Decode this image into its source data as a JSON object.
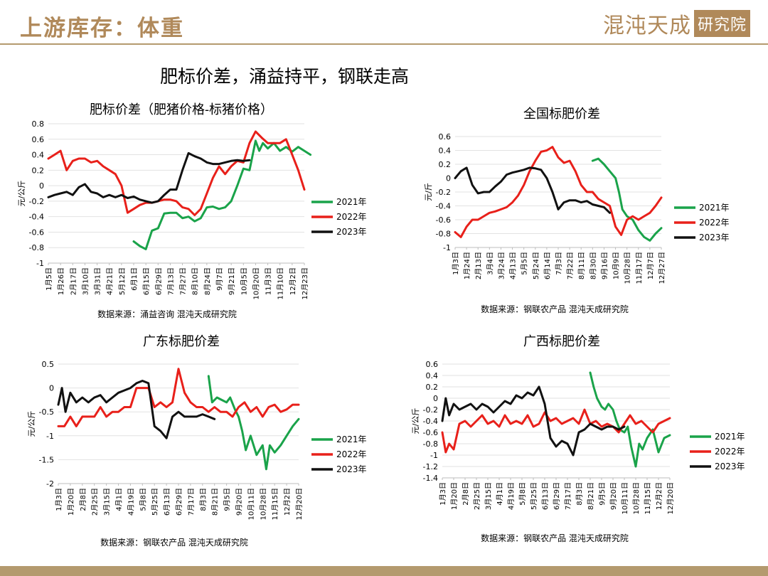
{
  "header": {
    "title": "上游库存：体重",
    "logo_text": "混沌天成",
    "logo_box": "研究院"
  },
  "subtitle": "肥标价差，涌益持平，钢联走高",
  "colors": {
    "y2021": "#1aa34a",
    "y2022": "#e8201a",
    "y2023": "#111111",
    "accent": "#b0895a"
  },
  "chart_data": [
    {
      "type": "line",
      "title": "肥标价差（肥猪价格-标猪价格）",
      "ylabel": "元/公斤",
      "source": "数据来源：涌益咨询 混沌天成研究院",
      "ylim": [
        -1,
        0.8
      ],
      "yticks": [
        -1,
        -0.8,
        -0.6,
        -0.4,
        -0.2,
        0,
        0.2,
        0.4,
        0.6,
        0.8
      ],
      "xticks": [
        "1月5日",
        "1月26日",
        "2月17日",
        "3月10日",
        "3月31日",
        "4月21日",
        "5月12日",
        "6月1日",
        "6月15日",
        "6月29日",
        "7月13日",
        "7月27日",
        "8月10日",
        "8月24日",
        "9月7日",
        "9月21日",
        "10月5日",
        "10月20日",
        "11月3日",
        "11月10日",
        "12月2日",
        "12月23日"
      ],
      "series": [
        {
          "name": "2021年",
          "x": [
            7,
            7.5,
            8,
            8.5,
            9,
            9.5,
            10,
            10.5,
            11,
            11.5,
            12,
            12.5,
            13,
            13.5,
            14,
            14.5,
            15,
            15.5,
            16,
            16.5,
            17,
            17.3,
            17.6,
            18,
            18.5,
            19,
            19.5,
            20,
            20.5,
            21,
            21.5
          ],
          "values": [
            -0.72,
            -0.78,
            -0.82,
            -0.58,
            -0.55,
            -0.36,
            -0.35,
            -0.35,
            -0.42,
            -0.4,
            -0.46,
            -0.42,
            -0.28,
            -0.27,
            -0.3,
            -0.28,
            -0.2,
            0.0,
            0.22,
            0.2,
            0.58,
            0.45,
            0.55,
            0.48,
            0.55,
            0.45,
            0.5,
            0.44,
            0.5,
            0.45,
            0.4
          ]
        },
        {
          "name": "2022年",
          "x": [
            0,
            0.5,
            1,
            1.5,
            2,
            2.5,
            3,
            3.5,
            4,
            4.5,
            5,
            5.5,
            6,
            6.5,
            7,
            7.5,
            8,
            8.5,
            9,
            9.5,
            10,
            10.5,
            11,
            11.5,
            12,
            12.5,
            13,
            13.5,
            14,
            14.5,
            15,
            15.5,
            16,
            16.5,
            17,
            17.5,
            18,
            18.5,
            19,
            19.5,
            20,
            20.5,
            21
          ],
          "values": [
            0.35,
            0.4,
            0.45,
            0.2,
            0.32,
            0.35,
            0.35,
            0.3,
            0.32,
            0.25,
            0.2,
            0.15,
            0.0,
            -0.35,
            -0.3,
            -0.25,
            -0.22,
            -0.22,
            -0.2,
            -0.18,
            -0.18,
            -0.2,
            -0.28,
            -0.3,
            -0.38,
            -0.3,
            -0.1,
            0.1,
            0.25,
            0.15,
            0.25,
            0.32,
            0.3,
            0.55,
            0.7,
            0.62,
            0.55,
            0.55,
            0.55,
            0.6,
            0.4,
            0.2,
            -0.05
          ]
        },
        {
          "name": "2023年",
          "x": [
            0,
            0.5,
            1,
            1.5,
            2,
            2.5,
            3,
            3.5,
            4,
            4.5,
            5,
            5.5,
            6,
            6.5,
            7,
            7.5,
            8,
            8.5,
            9,
            9.5,
            10,
            10.5,
            11,
            11.5,
            12,
            12.5,
            13,
            13.5,
            14,
            14.5,
            15,
            15.5,
            16,
            16.5
          ],
          "values": [
            -0.15,
            -0.12,
            -0.1,
            -0.08,
            -0.12,
            -0.02,
            0.02,
            -0.08,
            -0.1,
            -0.15,
            -0.12,
            -0.15,
            -0.12,
            -0.16,
            -0.14,
            -0.18,
            -0.2,
            -0.22,
            -0.2,
            -0.12,
            -0.05,
            -0.05,
            0.2,
            0.42,
            0.38,
            0.35,
            0.3,
            0.28,
            0.28,
            0.3,
            0.32,
            0.33,
            0.32,
            0.33
          ]
        }
      ]
    },
    {
      "type": "line",
      "title": "全国标肥价差",
      "ylabel": "元/斤",
      "source": "数据来源：钢联农产品 混沌天成研究院",
      "ylim": [
        -1,
        0.6
      ],
      "yticks": [
        -1,
        -0.8,
        -0.6,
        -0.4,
        -0.2,
        0,
        0.2,
        0.4,
        0.6
      ],
      "xticks": [
        "1月3日",
        "1月24日",
        "2月13日",
        "3月4日",
        "3月24日",
        "4月13日",
        "5月5日",
        "5月24日",
        "6月14日",
        "7月3日",
        "7月22日",
        "8月11日",
        "8月30日",
        "9月16日",
        "10月9日",
        "10月28日",
        "11月17日",
        "12月7日",
        "12月27日"
      ],
      "series": [
        {
          "name": "2021年",
          "x": [
            12,
            12.5,
            13,
            13.5,
            14,
            14.3,
            14.6,
            15,
            15.5,
            16,
            16.5,
            17,
            17.5,
            18
          ],
          "values": [
            0.25,
            0.28,
            0.2,
            0.1,
            0.0,
            -0.2,
            -0.45,
            -0.55,
            -0.6,
            -0.75,
            -0.85,
            -0.9,
            -0.8,
            -0.72
          ]
        },
        {
          "name": "2022年",
          "x": [
            0,
            0.5,
            1,
            1.5,
            2,
            2.5,
            3,
            3.5,
            4,
            4.5,
            5,
            5.5,
            6,
            6.5,
            7,
            7.5,
            8,
            8.5,
            9,
            9.5,
            10,
            10.5,
            11,
            11.5,
            12,
            12.5,
            13,
            13.5,
            14,
            14.5,
            15,
            15.5,
            16,
            16.5,
            17,
            17.5,
            18
          ],
          "values": [
            -0.78,
            -0.85,
            -0.7,
            -0.6,
            -0.6,
            -0.55,
            -0.5,
            -0.48,
            -0.45,
            -0.42,
            -0.35,
            -0.25,
            -0.1,
            0.1,
            0.25,
            0.38,
            0.4,
            0.45,
            0.3,
            0.22,
            0.25,
            0.1,
            -0.1,
            -0.2,
            -0.2,
            -0.3,
            -0.35,
            -0.4,
            -0.7,
            -0.82,
            -0.6,
            -0.55,
            -0.6,
            -0.55,
            -0.5,
            -0.4,
            -0.28
          ]
        },
        {
          "name": "2023年",
          "x": [
            0,
            0.5,
            1,
            1.5,
            2,
            2.5,
            3,
            3.5,
            4,
            4.5,
            5,
            5.5,
            6,
            6.5,
            7,
            7.5,
            8,
            8.5,
            9,
            9.5,
            10,
            10.5,
            11,
            11.5,
            12,
            12.5,
            13,
            13.5
          ],
          "values": [
            0.0,
            0.1,
            0.15,
            -0.1,
            -0.22,
            -0.2,
            -0.2,
            -0.12,
            -0.05,
            0.05,
            0.08,
            0.1,
            0.12,
            0.15,
            0.14,
            0.12,
            0.0,
            -0.2,
            -0.45,
            -0.35,
            -0.32,
            -0.32,
            -0.35,
            -0.33,
            -0.38,
            -0.4,
            -0.42,
            -0.5
          ]
        }
      ]
    },
    {
      "type": "line",
      "title": "广东标肥价差",
      "ylabel": "元/公斤",
      "source": "数据来源：钢联农产品 混沌天成研究院",
      "ylim": [
        -2,
        0.5
      ],
      "yticks": [
        -2,
        -1.5,
        -1,
        -0.5,
        0,
        0.5
      ],
      "xticks": [
        "1月3日",
        "1月20日",
        "2月8日",
        "2月25日",
        "3月15日",
        "4月1日",
        "4月19日",
        "5月8日",
        "5月25日",
        "6月13日",
        "6月29日",
        "7月17日",
        "8月3日",
        "8月21日",
        "9月5日",
        "9月20日",
        "10月11日",
        "10月28日",
        "11月15日",
        "12月2日",
        "12月20日"
      ],
      "series": [
        {
          "name": "2021年",
          "x": [
            12.5,
            12.8,
            13.2,
            13.6,
            14,
            14.3,
            14.7,
            15,
            15.3,
            15.6,
            16,
            16.5,
            17,
            17.3,
            17.6,
            18,
            18.5,
            19,
            19.5,
            20
          ],
          "values": [
            0.25,
            -0.3,
            -0.2,
            -0.25,
            -0.3,
            -0.2,
            -0.45,
            -0.6,
            -0.9,
            -1.3,
            -1.0,
            -1.4,
            -1.2,
            -1.7,
            -1.2,
            -1.35,
            -1.2,
            -1.0,
            -0.8,
            -0.65
          ]
        },
        {
          "name": "2022年",
          "x": [
            0,
            0.5,
            1,
            1.5,
            2,
            2.5,
            3,
            3.5,
            4,
            4.5,
            5,
            5.5,
            6,
            6.5,
            7,
            7.5,
            8,
            8.5,
            9,
            9.5,
            10,
            10.5,
            11,
            11.5,
            12,
            12.5,
            13,
            13.5,
            14,
            14.5,
            15,
            15.5,
            16,
            16.5,
            17,
            17.5,
            18,
            18.5,
            19,
            19.5,
            20
          ],
          "values": [
            -0.8,
            -0.8,
            -0.6,
            -0.8,
            -0.6,
            -0.6,
            -0.6,
            -0.4,
            -0.6,
            -0.5,
            -0.5,
            -0.4,
            -0.4,
            0.0,
            0.0,
            0.0,
            -0.4,
            -0.3,
            -0.4,
            -0.3,
            0.4,
            -0.1,
            -0.3,
            -0.4,
            -0.4,
            -0.5,
            -0.4,
            -0.5,
            -0.5,
            -0.6,
            -0.4,
            -0.3,
            -0.5,
            -0.4,
            -0.6,
            -0.4,
            -0.35,
            -0.5,
            -0.45,
            -0.35,
            -0.35
          ]
        },
        {
          "name": "2023年",
          "x": [
            0,
            0.3,
            0.6,
            1,
            1.5,
            2,
            2.5,
            3,
            3.5,
            4,
            4.5,
            5,
            5.5,
            6,
            6.5,
            7,
            7.5,
            8,
            8.5,
            9,
            9.5,
            10,
            10.5,
            11,
            11.5,
            12,
            12.5,
            13
          ],
          "values": [
            -0.35,
            0.0,
            -0.5,
            -0.1,
            -0.3,
            -0.2,
            -0.3,
            -0.2,
            -0.15,
            -0.3,
            -0.2,
            -0.1,
            -0.05,
            0.0,
            0.1,
            0.15,
            0.1,
            -0.8,
            -0.9,
            -1.05,
            -0.6,
            -0.5,
            -0.6,
            -0.6,
            -0.6,
            -0.55,
            -0.6,
            -0.65
          ]
        }
      ]
    },
    {
      "type": "line",
      "title": "广西标肥价差",
      "ylabel": "元/公斤",
      "source": "数据来源：钢联农产品 混沌天成研究院",
      "ylim": [
        -1.4,
        0.6
      ],
      "yticks": [
        -1.4,
        -1.2,
        -1,
        -0.8,
        -0.6,
        -0.4,
        -0.2,
        0,
        0.2,
        0.4,
        0.6
      ],
      "xticks": [
        "1月3日",
        "1月20日",
        "2月8日",
        "2月25日",
        "3月15日",
        "4月1日",
        "4月19日",
        "5月8日",
        "5月25日",
        "6月13日",
        "6月29日",
        "7月17日",
        "8月3日",
        "8月21日",
        "9月5日",
        "9月20日",
        "10月11日",
        "10月28日",
        "11月15日",
        "12月2日",
        "12月20日"
      ],
      "series": [
        {
          "name": "2021年",
          "x": [
            13,
            13.3,
            13.6,
            14,
            14.3,
            14.6,
            15,
            15.3,
            15.6,
            16,
            16.3,
            16.6,
            17,
            17.3,
            17.6,
            18,
            18.5,
            19,
            19.5,
            20
          ],
          "values": [
            0.45,
            0.2,
            0.0,
            -0.15,
            -0.2,
            -0.1,
            -0.2,
            -0.4,
            -0.55,
            -0.6,
            -0.5,
            -0.85,
            -1.2,
            -0.8,
            -0.9,
            -0.7,
            -0.55,
            -0.95,
            -0.7,
            -0.65
          ]
        },
        {
          "name": "2022年",
          "x": [
            0,
            0.3,
            0.6,
            1,
            1.5,
            2,
            2.5,
            3,
            3.5,
            4,
            4.5,
            5,
            5.5,
            6,
            6.5,
            7,
            7.5,
            8,
            8.5,
            9,
            9.5,
            10,
            10.5,
            11,
            11.5,
            12,
            12.5,
            13,
            13.5,
            14,
            14.5,
            15,
            15.5,
            16,
            16.5,
            17,
            17.5,
            18,
            18.5,
            19,
            19.5,
            20
          ],
          "values": [
            -0.6,
            -0.95,
            -0.8,
            -0.9,
            -0.45,
            -0.4,
            -0.5,
            -0.4,
            -0.3,
            -0.45,
            -0.4,
            -0.5,
            -0.3,
            -0.45,
            -0.4,
            -0.45,
            -0.3,
            -0.5,
            -0.45,
            -0.25,
            -0.4,
            -0.35,
            -0.45,
            -0.4,
            -0.35,
            -0.45,
            -0.2,
            -0.45,
            -0.4,
            -0.5,
            -0.45,
            -0.5,
            -0.6,
            -0.45,
            -0.3,
            -0.45,
            -0.4,
            -0.5,
            -0.6,
            -0.45,
            -0.4,
            -0.35
          ]
        },
        {
          "name": "2023年",
          "x": [
            0,
            0.3,
            0.6,
            1,
            1.5,
            2,
            2.5,
            3,
            3.5,
            4,
            4.5,
            5,
            5.5,
            6,
            6.5,
            7,
            7.5,
            8,
            8.5,
            9,
            9.5,
            10,
            10.5,
            11,
            11.5,
            12,
            12.5,
            13,
            13.5,
            14,
            14.5,
            15,
            15.5,
            16
          ],
          "values": [
            -0.4,
            0.0,
            -0.3,
            -0.1,
            -0.2,
            -0.15,
            -0.1,
            -0.2,
            -0.1,
            -0.15,
            -0.25,
            -0.15,
            -0.05,
            -0.1,
            0.05,
            0.0,
            0.1,
            0.05,
            0.2,
            -0.1,
            -0.7,
            -0.85,
            -0.75,
            -0.8,
            -1.0,
            -0.6,
            -0.55,
            -0.45,
            -0.5,
            -0.55,
            -0.5,
            -0.5,
            -0.55,
            -0.5
          ]
        }
      ]
    }
  ]
}
